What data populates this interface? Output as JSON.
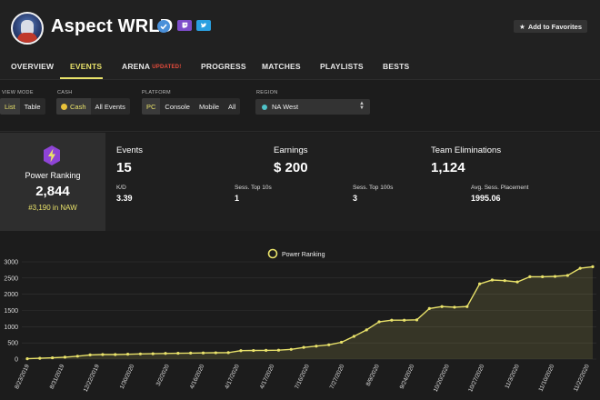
{
  "profile": {
    "name": "Aspect WRLD",
    "add_favorites": "Add to Favorites"
  },
  "icons": {
    "avatar": "player-avatar",
    "verified": "verified-check-icon",
    "twitch": "twitch-icon",
    "twitter": "twitter-icon",
    "star": "star-icon",
    "power": "lightning-bolt-icon"
  },
  "colors": {
    "accent": "#e9e26a",
    "updated_badge": "#e74c3c",
    "twitch": "#7d4cc9",
    "twitter": "#2a9fe0"
  },
  "tabs": [
    {
      "label": "OVERVIEW"
    },
    {
      "label": "EVENTS",
      "active": true
    },
    {
      "label": "ARENA",
      "badge": "UPDATED!"
    },
    {
      "label": "PROGRESS"
    },
    {
      "label": "MATCHES"
    },
    {
      "label": "PLAYLISTS"
    },
    {
      "label": "BESTS"
    }
  ],
  "filters": {
    "view_mode": {
      "label": "VIEW MODE",
      "options": [
        "List",
        "Table"
      ],
      "selected": "List"
    },
    "cash": {
      "label": "CASH",
      "options": [
        "Cash",
        "All Events"
      ],
      "selected": "Cash"
    },
    "platform": {
      "label": "PLATFORM",
      "options": [
        "PC",
        "Console",
        "Mobile",
        "All"
      ],
      "selected": "PC"
    },
    "region": {
      "label": "REGION",
      "value": "NA West"
    }
  },
  "power_ranking": {
    "label": "Power Ranking",
    "value": "2,844",
    "rank": "#3,190 in NAW"
  },
  "stats": {
    "events": {
      "label": "Events",
      "value": "15"
    },
    "earnings": {
      "label": "Earnings",
      "value": "$ 200"
    },
    "team_elims": {
      "label": "Team Eliminations",
      "value": "1,124"
    },
    "kd": {
      "label": "K/D",
      "value": "3.39"
    },
    "top10": {
      "label": "Sess. Top 10s",
      "value": "1"
    },
    "top100": {
      "label": "Sess. Top 100s",
      "value": "3"
    },
    "avg_place": {
      "label": "Avg. Sess. Placement",
      "value": "1995.06"
    }
  },
  "chart_data": {
    "type": "line",
    "title": "",
    "legend": [
      "Power Ranking"
    ],
    "legend_position": "top-center",
    "xlabel": "",
    "ylabel": "",
    "ylim": [
      0,
      3000
    ],
    "yticks": [
      0,
      500,
      1000,
      1500,
      2000,
      2500,
      3000
    ],
    "grid": true,
    "x_tick_labels": [
      "8/23/2019",
      "8/31/2019",
      "12/22/2019",
      "1/30/2020",
      "3/2/2020",
      "4/16/2020",
      "4/17/2020",
      "4/17/2020",
      "7/16/2020",
      "7/27/2020",
      "8/9/2020",
      "9/24/2020",
      "10/20/2020",
      "10/27/2020",
      "11/3/2020",
      "11/10/2020",
      "11/22/2020"
    ],
    "series": [
      {
        "name": "Power Ranking",
        "color": "#e9e26a",
        "values": [
          10,
          25,
          40,
          60,
          90,
          130,
          140,
          140,
          150,
          160,
          165,
          175,
          180,
          185,
          190,
          195,
          200,
          260,
          265,
          270,
          275,
          300,
          360,
          400,
          440,
          520,
          700,
          900,
          1150,
          1200,
          1200,
          1210,
          1560,
          1620,
          1600,
          1620,
          2320,
          2440,
          2420,
          2380,
          2540,
          2540,
          2550,
          2580,
          2800,
          2850
        ]
      }
    ]
  }
}
